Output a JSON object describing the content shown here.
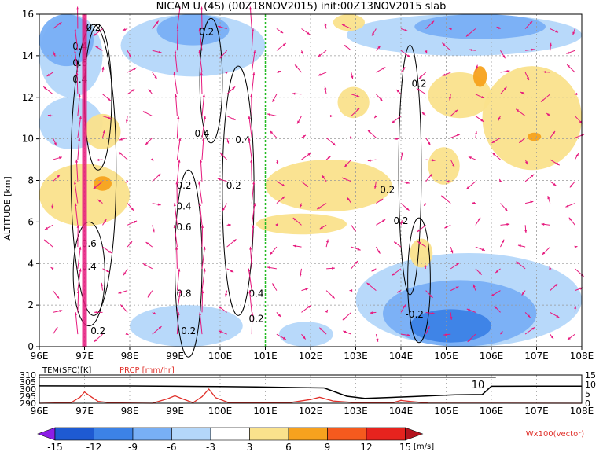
{
  "chart_data": [
    {
      "type": "heatmap",
      "title": "NICAM U (4S) (00Z18NOV2015) init:00Z13NOV2015 slab",
      "ylabel": "ALTITUDE [km]",
      "xlim": [
        96,
        108
      ],
      "ylim": [
        0,
        16
      ],
      "grid": true,
      "x_ticks": [
        "96E",
        "97E",
        "98E",
        "99E",
        "100E",
        "101E",
        "102E",
        "103E",
        "104E",
        "105E",
        "106E",
        "107E",
        "108E"
      ],
      "y_ticks": [
        "0",
        "2",
        "4",
        "6",
        "8",
        "10",
        "12",
        "14",
        "16"
      ],
      "marker_line_lon": 101,
      "shading_regions": [
        {
          "level": -3,
          "lon": [
            96.0,
            97.4
          ],
          "alt": [
            12.0,
            16.0
          ]
        },
        {
          "level": -6,
          "lon": [
            96.0,
            97.2
          ],
          "alt": [
            13.5,
            16.0
          ]
        },
        {
          "level": -3,
          "lon": [
            97.8,
            101.0
          ],
          "alt": [
            13.0,
            16.0
          ]
        },
        {
          "level": -6,
          "lon": [
            98.6,
            100.2
          ],
          "alt": [
            14.5,
            16.0
          ]
        },
        {
          "level": -3,
          "lon": [
            102.8,
            108.0
          ],
          "alt": [
            14.0,
            16.0
          ]
        },
        {
          "level": -6,
          "lon": [
            104.3,
            107.2
          ],
          "alt": [
            14.8,
            16.0
          ]
        },
        {
          "level": -3,
          "lon": [
            96.0,
            97.4
          ],
          "alt": [
            9.5,
            12.0
          ]
        },
        {
          "level": -3,
          "lon": [
            103.0,
            108.0
          ],
          "alt": [
            0.0,
            4.5
          ]
        },
        {
          "level": -6,
          "lon": [
            103.6,
            107.0
          ],
          "alt": [
            0.0,
            3.2
          ]
        },
        {
          "level": -9,
          "lon": [
            104.2,
            106.0
          ],
          "alt": [
            0.2,
            1.8
          ]
        },
        {
          "level": -3,
          "lon": [
            98.0,
            100.5
          ],
          "alt": [
            0.0,
            2.0
          ]
        },
        {
          "level": -3,
          "lon": [
            101.3,
            102.5
          ],
          "alt": [
            0.0,
            1.2
          ]
        },
        {
          "level": 3,
          "lon": [
            96.0,
            98.0
          ],
          "alt": [
            5.8,
            8.8
          ]
        },
        {
          "level": 3,
          "lon": [
            97.0,
            97.8
          ],
          "alt": [
            9.5,
            11.2
          ]
        },
        {
          "level": 3,
          "lon": [
            101.0,
            103.8
          ],
          "alt": [
            6.5,
            9.0
          ]
        },
        {
          "level": 3,
          "lon": [
            102.6,
            103.3
          ],
          "alt": [
            11.0,
            12.5
          ]
        },
        {
          "level": 3,
          "lon": [
            104.6,
            105.3
          ],
          "alt": [
            7.8,
            9.6
          ]
        },
        {
          "level": 3,
          "lon": [
            105.8,
            108.0
          ],
          "alt": [
            8.5,
            13.5
          ]
        },
        {
          "level": 3,
          "lon": [
            104.6,
            106.0
          ],
          "alt": [
            11.0,
            13.2
          ]
        },
        {
          "level": 3,
          "lon": [
            102.5,
            103.2
          ],
          "alt": [
            15.2,
            16.0
          ]
        },
        {
          "level": 3,
          "lon": [
            100.8,
            102.8
          ],
          "alt": [
            5.4,
            6.4
          ]
        },
        {
          "level": 3,
          "lon": [
            104.2,
            104.7
          ],
          "alt": [
            3.8,
            5.2
          ]
        },
        {
          "level": 6,
          "lon": [
            97.2,
            97.6
          ],
          "alt": [
            7.5,
            8.2
          ]
        },
        {
          "level": 6,
          "lon": [
            105.6,
            105.9
          ],
          "alt": [
            12.5,
            13.5
          ]
        },
        {
          "level": 6,
          "lon": [
            106.8,
            107.1
          ],
          "alt": [
            9.9,
            10.3
          ]
        }
      ],
      "contour_labels": [
        {
          "text": "0.2",
          "lon": 97.2,
          "alt": 15.2
        },
        {
          "text": "0.4",
          "lon": 96.9,
          "alt": 14.3
        },
        {
          "text": "0.6",
          "lon": 96.9,
          "alt": 13.5
        },
        {
          "text": "0.4",
          "lon": 96.9,
          "alt": 12.7
        },
        {
          "text": "0.2",
          "lon": 99.7,
          "alt": 15.0
        },
        {
          "text": "0.4",
          "lon": 99.6,
          "alt": 10.1
        },
        {
          "text": "0.4",
          "lon": 100.5,
          "alt": 9.8
        },
        {
          "text": "0.2",
          "lon": 104.4,
          "alt": 12.5
        },
        {
          "text": "0.2",
          "lon": 99.2,
          "alt": 7.6
        },
        {
          "text": "0.4",
          "lon": 99.2,
          "alt": 6.6
        },
        {
          "text": "0.2",
          "lon": 100.3,
          "alt": 7.6
        },
        {
          "text": "0.2",
          "lon": 103.7,
          "alt": 7.4
        },
        {
          "text": "0.2",
          "lon": 104.0,
          "alt": 5.9
        },
        {
          "text": "0.6",
          "lon": 99.2,
          "alt": 5.6
        },
        {
          "text": "0.6",
          "lon": 97.1,
          "alt": 4.8
        },
        {
          "text": "0.4",
          "lon": 97.1,
          "alt": 3.7
        },
        {
          "text": "0.8",
          "lon": 99.2,
          "alt": 2.4
        },
        {
          "text": "0.4",
          "lon": 100.8,
          "alt": 2.4
        },
        {
          "text": "0.2",
          "lon": 100.8,
          "alt": 1.2
        },
        {
          "text": "-0.2",
          "lon": 104.3,
          "alt": 1.4
        },
        {
          "text": "0.2",
          "lon": 97.3,
          "alt": 0.6
        },
        {
          "text": "0.2",
          "lon": 99.3,
          "alt": 0.6
        }
      ]
    },
    {
      "type": "line",
      "xlim": [
        96,
        108
      ],
      "x_ticks": [
        "96E",
        "97E",
        "98E",
        "99E",
        "100E",
        "101E",
        "102E",
        "103E",
        "104E",
        "105E",
        "106E",
        "107E",
        "108E"
      ],
      "left_axis": {
        "label": "TEM(SFC)[K]",
        "ticks": [
          "290",
          "295",
          "300",
          "305",
          "310"
        ],
        "range": [
          290,
          310
        ]
      },
      "right_axis": {
        "ticks": [
          "0",
          "5",
          "10",
          "15"
        ],
        "range": [
          0,
          15
        ]
      },
      "series": [
        {
          "name": "TEM(SFC)[K]",
          "color": "#000000",
          "lon": [
            96,
            97,
            98,
            99,
            100,
            100.8,
            101.5,
            102.3,
            102.8,
            103.2,
            103.8,
            104.3,
            104.8,
            105.2,
            105.8,
            106.0,
            107,
            108
          ],
          "values": [
            302.3,
            302.2,
            302.2,
            302.0,
            301.8,
            301.5,
            301.2,
            300.8,
            295.0,
            293.5,
            294.2,
            294.8,
            295.5,
            296.0,
            296.2,
            302.0,
            302.1,
            302.1
          ]
        },
        {
          "name": "PRCP [mm/hr]",
          "color": "#e0302a",
          "lon": [
            96,
            96.7,
            96.9,
            97.0,
            97.1,
            97.3,
            97.6,
            98.5,
            98.85,
            99.0,
            99.15,
            99.4,
            99.6,
            99.75,
            99.9,
            100.2,
            101.5,
            102.0,
            102.2,
            102.5,
            103.0,
            103.8,
            104.0,
            104.2,
            104.6,
            108
          ],
          "values": [
            0,
            0.3,
            3.2,
            6.0,
            4.2,
            1.0,
            0.2,
            0,
            2.5,
            4.0,
            2.5,
            0.3,
            3.5,
            7.5,
            3.0,
            0.2,
            0.2,
            2.0,
            3.2,
            1.2,
            0.3,
            0.2,
            1.5,
            1.0,
            0.1,
            0
          ]
        }
      ],
      "annotation": "10"
    }
  ],
  "colorbar": {
    "levels": [
      "-15",
      "-12",
      "-9",
      "-6",
      "-3",
      "3",
      "6",
      "9",
      "12",
      "15"
    ],
    "unit": "[m/s]",
    "colors": {
      "lt_m15": "#8c1ee6",
      "m15_m12": "#1e5ad2",
      "m12_m9": "#3c82e6",
      "m9_m6": "#78aff5",
      "m6_m3": "#b4d7fa",
      "m3_p3": "#ffffff",
      "p3_p6": "#fae28c",
      "p6_p9": "#f7a21e",
      "p9_p12": "#f55a1e",
      "p12_p15": "#e6231e",
      "gt_p15": "#b4141e"
    }
  },
  "vector_label": "Wx100(vector)",
  "colors": {
    "vector": "#e6197d",
    "marker_line": "#22bb22",
    "precip": "#e0302a"
  }
}
